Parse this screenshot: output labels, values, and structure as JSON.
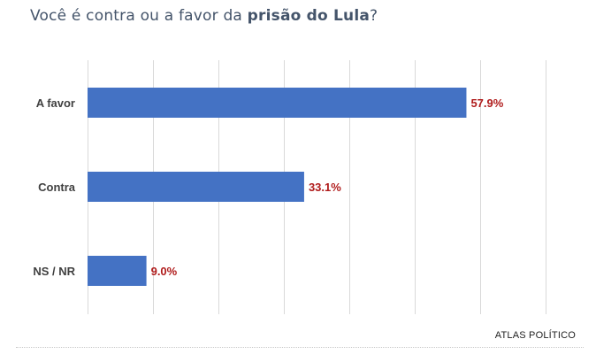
{
  "title": {
    "prefix": "Você é contra ou a favor da ",
    "emphasis": "prisão do Lula",
    "suffix": "?"
  },
  "source": "ATLAS POLÍTICO",
  "colors": {
    "bar": "#4472c4",
    "value_label": "#b01c1c",
    "category_label": "#404040",
    "gridline": "#d9d9d9",
    "title": "#44546a"
  },
  "chart_data": {
    "type": "bar",
    "orientation": "horizontal",
    "categories": [
      "A favor",
      "Contra",
      "NS / NR"
    ],
    "values": [
      57.9,
      33.1,
      9.0
    ],
    "value_labels": [
      "57.9%",
      "33.1%",
      "9.0%"
    ],
    "unit": "%",
    "xlim": [
      0,
      70
    ],
    "grid": true,
    "legend": "none"
  }
}
